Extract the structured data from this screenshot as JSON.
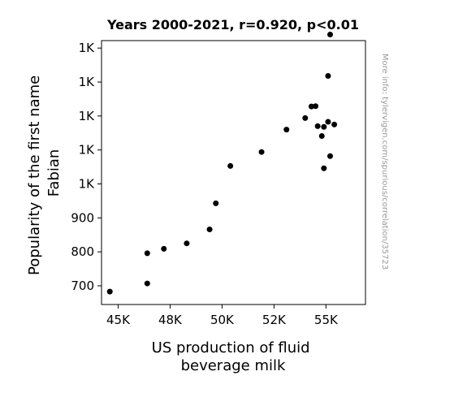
{
  "chart_data": {
    "type": "scatter",
    "title": "Years 2000-2021, r=0.920, p<0.01",
    "xlabel_lines": [
      "US production of fluid",
      "beverage milk"
    ],
    "ylabel_lines": [
      "Popularity of the first name",
      "Fabian"
    ],
    "watermark": "More info: tylervigen.com/spurious/correlation/35723",
    "xlim": [
      44200,
      56900
    ],
    "ylim": [
      645,
      1422
    ],
    "grid": false,
    "xticks": [
      {
        "value": 45000,
        "label": "45K"
      },
      {
        "value": 47500,
        "label": "48K"
      },
      {
        "value": 50000,
        "label": "50K"
      },
      {
        "value": 52500,
        "label": "52K"
      },
      {
        "value": 55000,
        "label": "55K"
      }
    ],
    "yticks": [
      {
        "value": 700,
        "label": "700"
      },
      {
        "value": 800,
        "label": "800"
      },
      {
        "value": 900,
        "label": "900"
      },
      {
        "value": 1000,
        "label": "1K"
      },
      {
        "value": 1100,
        "label": "1K"
      },
      {
        "value": 1200,
        "label": "1K"
      },
      {
        "value": 1300,
        "label": "1K"
      },
      {
        "value": 1400,
        "label": "1K"
      }
    ],
    "marker_color": "#000000",
    "points": [
      {
        "x": 44600,
        "y": 683
      },
      {
        "x": 46400,
        "y": 707
      },
      {
        "x": 46400,
        "y": 796
      },
      {
        "x": 47200,
        "y": 809
      },
      {
        "x": 48300,
        "y": 825
      },
      {
        "x": 49400,
        "y": 866
      },
      {
        "x": 49700,
        "y": 943
      },
      {
        "x": 50400,
        "y": 1053
      },
      {
        "x": 51900,
        "y": 1094
      },
      {
        "x": 53100,
        "y": 1160
      },
      {
        "x": 54000,
        "y": 1194
      },
      {
        "x": 54300,
        "y": 1228
      },
      {
        "x": 54500,
        "y": 1229
      },
      {
        "x": 54600,
        "y": 1170
      },
      {
        "x": 54800,
        "y": 1141
      },
      {
        "x": 54900,
        "y": 1168
      },
      {
        "x": 54900,
        "y": 1046
      },
      {
        "x": 55100,
        "y": 1318
      },
      {
        "x": 55100,
        "y": 1183
      },
      {
        "x": 55200,
        "y": 1440
      },
      {
        "x": 55200,
        "y": 1082
      },
      {
        "x": 55400,
        "y": 1175
      }
    ]
  }
}
